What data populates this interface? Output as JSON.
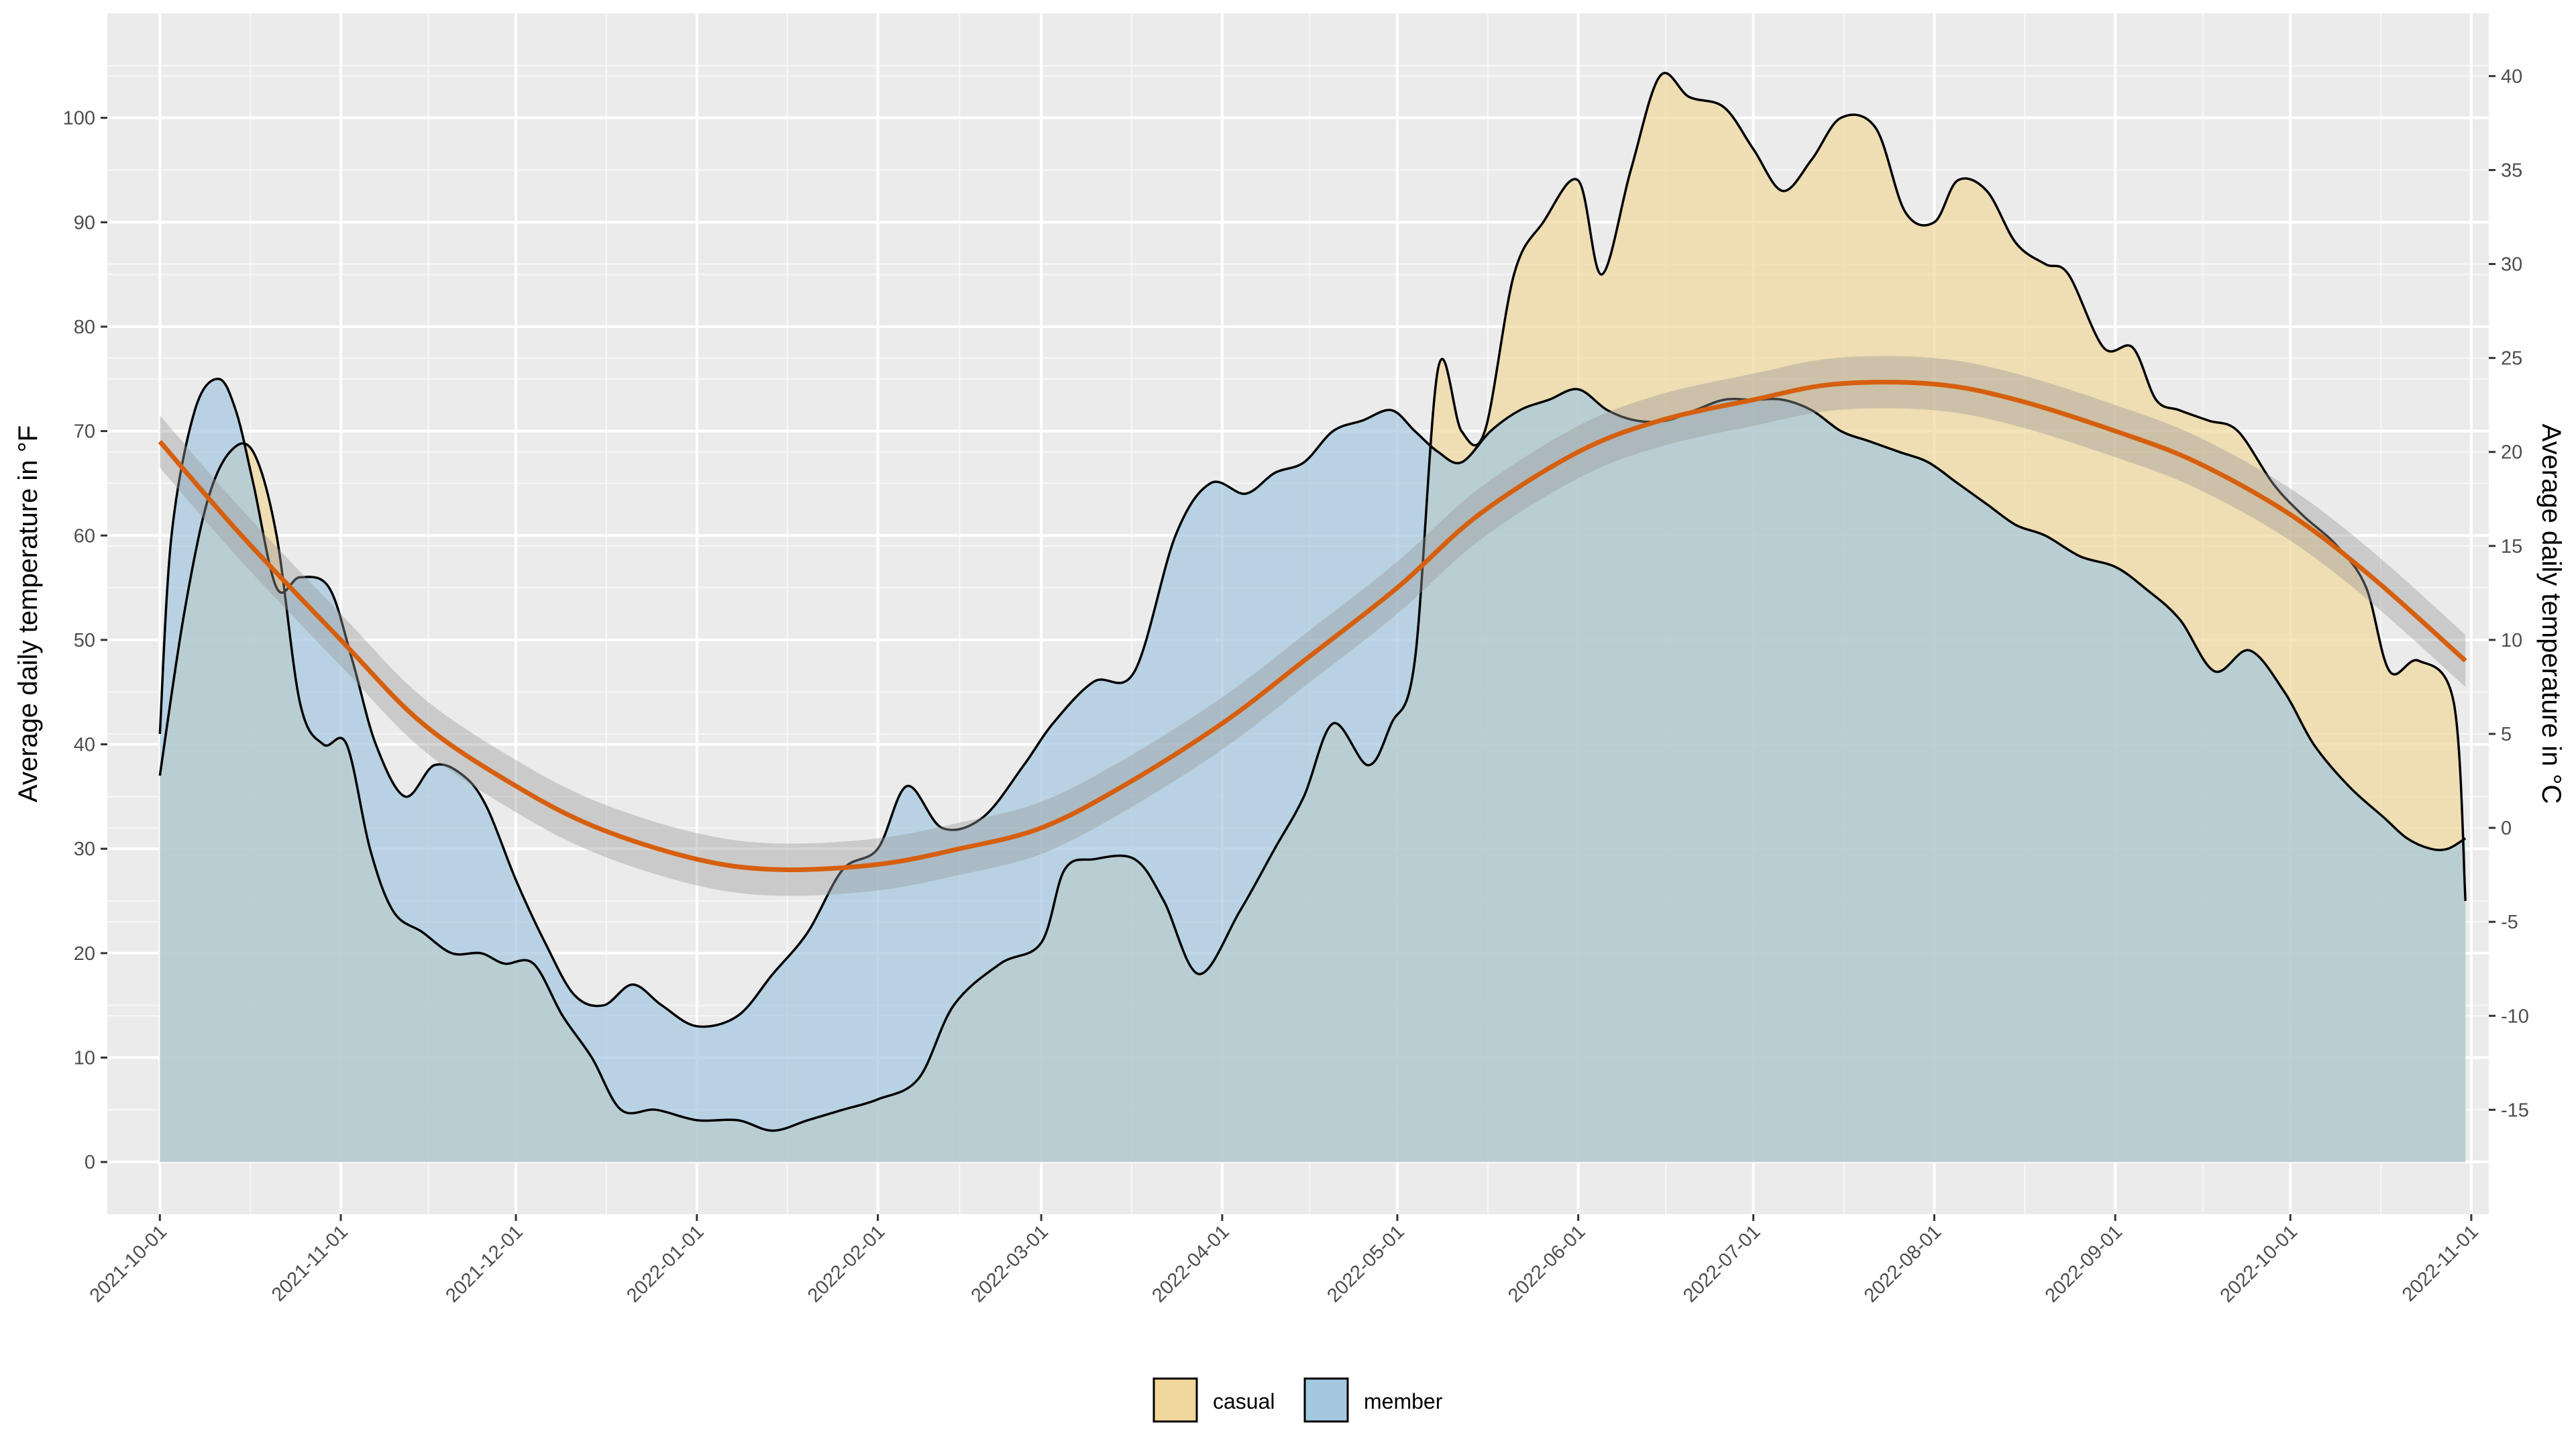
{
  "chart_data": {
    "type": "area",
    "title": "",
    "ylabel": "Average daily temperature in °F",
    "ylabel_right": "Average daily temperature in °C",
    "xlabel": "",
    "xlim": [
      "2021-09-22",
      "2022-11-04"
    ],
    "ylim": [
      -5,
      110
    ],
    "grid": true,
    "legend_position": "bottom",
    "x_ticks": [
      "2021-10-01",
      "2021-11-01",
      "2021-12-01",
      "2022-01-01",
      "2022-02-01",
      "2022-03-01",
      "2022-04-01",
      "2022-05-01",
      "2022-06-01",
      "2022-07-01",
      "2022-08-01",
      "2022-09-01",
      "2022-10-01",
      "2022-11-01"
    ],
    "y_ticks": [
      0,
      10,
      20,
      30,
      40,
      50,
      60,
      70,
      80,
      90,
      100
    ],
    "y_ticks_right": [
      -15,
      -10,
      -5,
      0,
      5,
      10,
      15,
      20,
      25,
      30,
      35,
      40
    ],
    "series": [
      {
        "name": "casual",
        "color": "#f1d79b",
        "x": [
          "2021-10-01",
          "2021-10-05",
          "2021-10-09",
          "2021-10-13",
          "2021-10-17",
          "2021-10-21",
          "2021-10-25",
          "2021-10-29",
          "2021-11-02",
          "2021-11-06",
          "2021-11-10",
          "2021-11-15",
          "2021-11-20",
          "2021-11-25",
          "2021-11-29",
          "2021-12-04",
          "2021-12-09",
          "2021-12-14",
          "2021-12-19",
          "2021-12-25",
          "2022-01-01",
          "2022-01-08",
          "2022-01-14",
          "2022-01-20",
          "2022-01-26",
          "2022-02-01",
          "2022-02-08",
          "2022-02-14",
          "2022-02-22",
          "2022-03-01",
          "2022-03-05",
          "2022-03-10",
          "2022-03-17",
          "2022-03-22",
          "2022-03-28",
          "2022-04-04",
          "2022-04-10",
          "2022-04-15",
          "2022-04-20",
          "2022-04-26",
          "2022-04-30",
          "2022-05-04",
          "2022-05-08",
          "2022-05-12",
          "2022-05-16",
          "2022-05-21",
          "2022-05-26",
          "2022-06-01",
          "2022-06-05",
          "2022-06-10",
          "2022-06-15",
          "2022-06-20",
          "2022-06-26",
          "2022-07-01",
          "2022-07-06",
          "2022-07-11",
          "2022-07-16",
          "2022-07-22",
          "2022-07-27",
          "2022-08-01",
          "2022-08-05",
          "2022-08-10",
          "2022-08-15",
          "2022-08-20",
          "2022-08-24",
          "2022-08-30",
          "2022-09-04",
          "2022-09-08",
          "2022-09-12",
          "2022-09-17",
          "2022-09-22",
          "2022-09-28",
          "2022-10-03",
          "2022-10-09",
          "2022-10-14",
          "2022-10-18",
          "2022-10-23",
          "2022-10-29",
          "2022-10-31"
        ],
        "values": [
          37,
          52,
          63,
          68,
          68,
          60,
          44,
          40,
          40,
          30,
          24,
          22,
          20,
          20,
          19,
          19,
          14,
          10,
          5,
          5,
          4,
          4,
          3,
          4,
          5,
          6,
          8,
          15,
          19,
          21,
          28,
          29,
          29,
          25,
          18,
          24,
          30,
          35,
          42,
          38,
          42,
          48,
          76,
          70,
          70,
          85,
          90,
          94,
          85,
          95,
          104,
          102,
          101,
          97,
          93,
          96,
          100,
          99,
          91,
          90,
          94,
          93,
          88,
          86,
          85,
          78,
          78,
          73,
          72,
          71,
          70,
          65,
          62,
          59,
          55,
          47,
          48,
          44,
          25
        ]
      },
      {
        "name": "member",
        "color": "#a3c8df",
        "x": [
          "2021-10-01",
          "2021-10-03",
          "2021-10-07",
          "2021-10-11",
          "2021-10-14",
          "2021-10-17",
          "2021-10-21",
          "2021-10-25",
          "2021-10-30",
          "2021-11-03",
          "2021-11-07",
          "2021-11-12",
          "2021-11-17",
          "2021-11-22",
          "2021-11-26",
          "2021-12-01",
          "2021-12-06",
          "2021-12-11",
          "2021-12-16",
          "2021-12-21",
          "2021-12-26",
          "2022-01-01",
          "2022-01-08",
          "2022-01-14",
          "2022-01-20",
          "2022-01-26",
          "2022-02-01",
          "2022-02-06",
          "2022-02-12",
          "2022-02-19",
          "2022-02-26",
          "2022-03-03",
          "2022-03-10",
          "2022-03-17",
          "2022-03-24",
          "2022-03-30",
          "2022-04-05",
          "2022-04-10",
          "2022-04-15",
          "2022-04-20",
          "2022-04-25",
          "2022-04-30",
          "2022-05-04",
          "2022-05-08",
          "2022-05-12",
          "2022-05-17",
          "2022-05-22",
          "2022-05-27",
          "2022-06-01",
          "2022-06-06",
          "2022-06-11",
          "2022-06-16",
          "2022-06-21",
          "2022-06-26",
          "2022-07-01",
          "2022-07-06",
          "2022-07-11",
          "2022-07-16",
          "2022-07-21",
          "2022-07-26",
          "2022-07-31",
          "2022-08-05",
          "2022-08-10",
          "2022-08-15",
          "2022-08-20",
          "2022-08-26",
          "2022-09-01",
          "2022-09-06",
          "2022-09-12",
          "2022-09-18",
          "2022-09-24",
          "2022-09-30",
          "2022-10-05",
          "2022-10-11",
          "2022-10-17",
          "2022-10-21",
          "2022-10-25",
          "2022-10-28",
          "2022-10-31"
        ],
        "values": [
          41,
          60,
          72,
          75,
          72,
          65,
          55,
          56,
          55,
          48,
          40,
          35,
          38,
          37,
          34,
          27,
          21,
          16,
          15,
          17,
          15,
          13,
          14,
          18,
          22,
          28,
          30,
          36,
          32,
          33,
          38,
          42,
          46,
          47,
          60,
          65,
          64,
          66,
          67,
          70,
          71,
          72,
          70,
          68,
          67,
          70,
          72,
          73,
          74,
          72,
          71,
          71,
          72,
          73,
          73,
          73,
          72,
          70,
          69,
          68,
          67,
          65,
          63,
          61,
          60,
          58,
          57,
          55,
          52,
          47,
          49,
          45,
          40,
          36,
          33,
          31,
          30,
          30,
          31
        ]
      }
    ],
    "trend": {
      "name": "smooth",
      "color": "#d65f0e",
      "x": [
        "2021-10-01",
        "2021-10-15",
        "2021-11-01",
        "2021-11-15",
        "2021-12-01",
        "2021-12-15",
        "2022-01-01",
        "2022-01-15",
        "2022-02-01",
        "2022-02-15",
        "2022-03-01",
        "2022-03-15",
        "2022-04-01",
        "2022-04-15",
        "2022-05-01",
        "2022-05-15",
        "2022-06-01",
        "2022-06-15",
        "2022-07-01",
        "2022-07-15",
        "2022-08-01",
        "2022-08-15",
        "2022-09-01",
        "2022-09-15",
        "2022-10-01",
        "2022-10-15",
        "2022-10-31"
      ],
      "values": [
        69,
        60,
        50,
        42,
        36,
        32,
        29,
        28,
        28.5,
        30,
        32,
        36,
        42,
        48,
        55,
        62,
        68,
        71,
        73,
        74.5,
        74.5,
        73,
        70,
        67,
        62,
        56,
        48
      ],
      "band": 2.5
    }
  }
}
